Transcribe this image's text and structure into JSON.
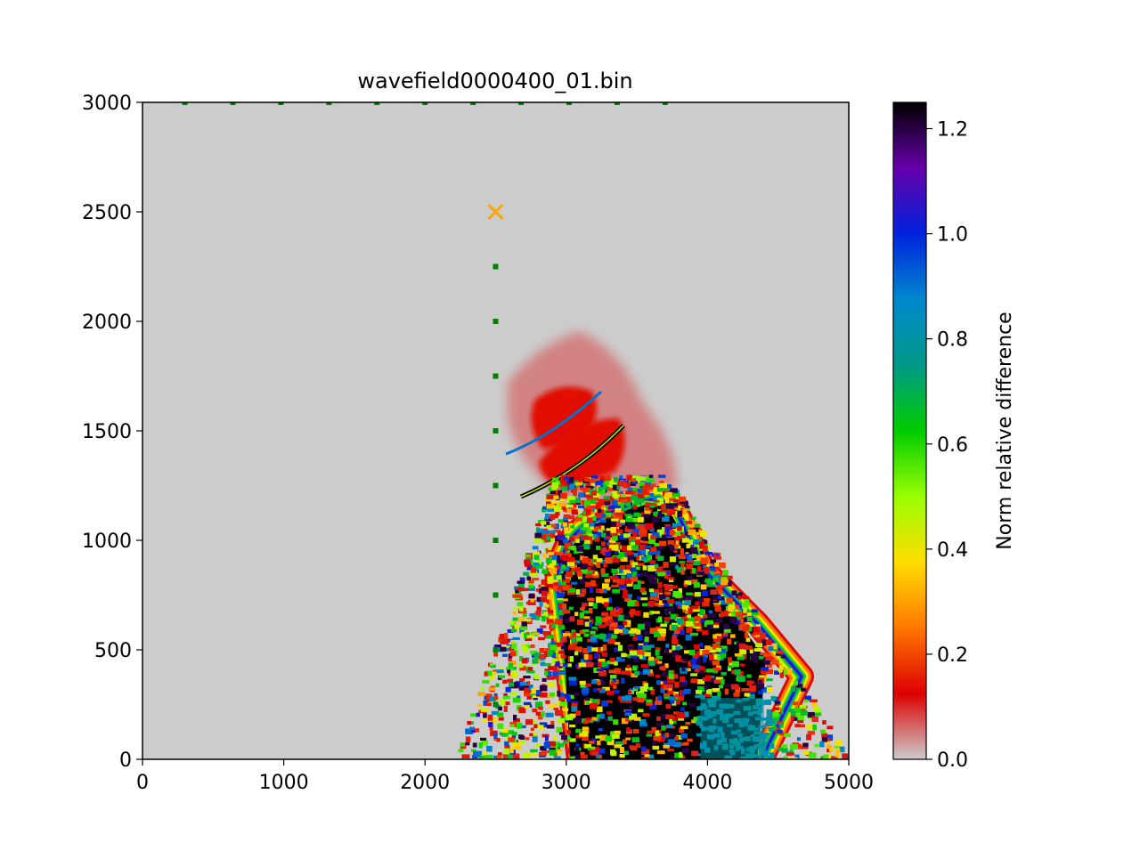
{
  "chart_data": {
    "type": "heatmap",
    "title": "wavefield0000400_01.bin",
    "xlabel": "",
    "ylabel": "",
    "xlim": [
      0,
      5000
    ],
    "ylim": [
      0,
      3000
    ],
    "x_ticks": [
      0,
      1000,
      2000,
      3000,
      4000,
      5000
    ],
    "y_ticks": [
      0,
      500,
      1000,
      1500,
      2000,
      2500,
      3000
    ],
    "x_tick_labels": [
      "0",
      "1000",
      "2000",
      "3000",
      "4000",
      "5000"
    ],
    "y_tick_labels": [
      "0",
      "500",
      "1000",
      "1500",
      "2000",
      "2500",
      "3000"
    ],
    "background_value": 0.0,
    "colorbar": {
      "label": "Norm relative difference",
      "range": [
        0.0,
        1.25
      ],
      "ticks": [
        0.0,
        0.2,
        0.4,
        0.6,
        0.8,
        1.0,
        1.2
      ],
      "tick_labels": [
        "0.0",
        "0.2",
        "0.4",
        "0.6",
        "0.8",
        "1.0",
        "1.2"
      ],
      "colormap": "nipy_spectral_reversed_grey_base",
      "colors": [
        "#cccccc",
        "#dd0000",
        "#ff7700",
        "#ffdd00",
        "#99ff00",
        "#00cc00",
        "#009988",
        "#0088cc",
        "#0022dd",
        "#6600aa",
        "#000000"
      ]
    },
    "field_regions": [
      {
        "name": "near-field halo",
        "x": [
          2600,
          3700
        ],
        "y": [
          1250,
          1900
        ],
        "value": 0.15
      },
      {
        "name": "saturated core",
        "x": [
          2950,
          3700
        ],
        "y": [
          800,
          1200
        ],
        "value": 1.25
      },
      {
        "name": "scattered tail",
        "x": [
          2200,
          5000
        ],
        "y": [
          0,
          1300
        ],
        "value": 0.6
      },
      {
        "name": "cyan patch",
        "x": [
          3900,
          4450
        ],
        "y": [
          0,
          300
        ],
        "value": 0.8
      }
    ],
    "source": {
      "x": 2500,
      "y": 2500,
      "marker": "x",
      "color": "#ffa500"
    },
    "receivers_top": {
      "x": [
        300,
        640,
        980,
        1320,
        1660,
        2000,
        2340,
        2680,
        3020,
        3360,
        3700
      ],
      "y": 3000,
      "color": "#008000"
    },
    "receivers_vertical": {
      "x": 2500,
      "y": [
        250,
        500,
        750,
        1000,
        1250,
        1500,
        1750,
        2000,
        2250
      ],
      "color": "#008000"
    }
  }
}
